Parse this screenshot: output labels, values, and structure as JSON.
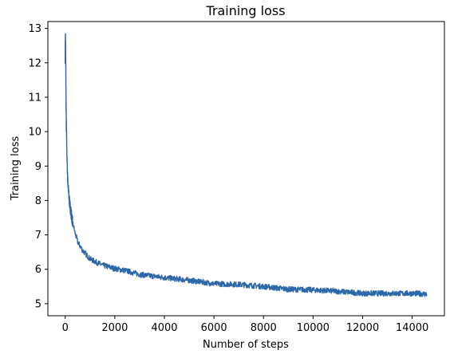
{
  "chart_data": {
    "type": "line",
    "title": "Training loss",
    "xlabel": "Number of steps",
    "ylabel": "Training loss",
    "xlim": [
      -700,
      15300
    ],
    "ylim": [
      4.65,
      13.2
    ],
    "xticks": [
      0,
      2000,
      4000,
      6000,
      8000,
      10000,
      12000,
      14000
    ],
    "yticks": [
      5,
      6,
      7,
      8,
      9,
      10,
      11,
      12,
      13
    ],
    "grid": false,
    "legend": "none",
    "series": [
      {
        "color": "#2c68a8",
        "x": [
          0,
          10,
          20,
          40,
          60,
          80,
          100,
          150,
          200,
          300,
          400,
          500,
          700,
          1000,
          1500,
          2000,
          2500,
          3000,
          4000,
          5000,
          6000,
          7000,
          8000,
          9000,
          10000,
          11000,
          12000,
          13000,
          14000,
          14600
        ],
        "y": [
          12.3,
          12.8,
          12.0,
          10.4,
          9.6,
          9.0,
          8.6,
          8.1,
          7.8,
          7.35,
          7.05,
          6.8,
          6.55,
          6.3,
          6.12,
          6.02,
          5.95,
          5.85,
          5.76,
          5.68,
          5.58,
          5.56,
          5.5,
          5.42,
          5.4,
          5.36,
          5.3,
          5.3,
          5.3,
          5.28
        ],
        "noise": 0.08
      }
    ]
  }
}
